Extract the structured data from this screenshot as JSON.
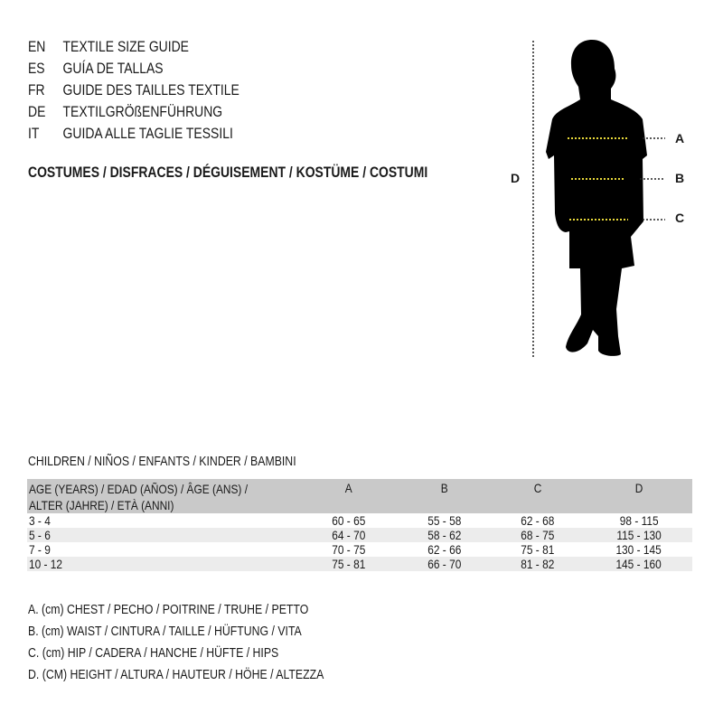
{
  "languages": [
    {
      "code": "EN",
      "title": "TEXTILE SIZE GUIDE"
    },
    {
      "code": "ES",
      "title": "GUÍA DE TALLAS"
    },
    {
      "code": "FR",
      "title": "GUIDE DES TAILLES TEXTILE"
    },
    {
      "code": "DE",
      "title": "TEXTILGRÖßENFÜHRUNG"
    },
    {
      "code": "IT",
      "title": "GUIDA ALLE TAGLIE TESSILI"
    }
  ],
  "category": "COSTUMES / DISFRACES / DÉGUISEMENT / KOSTÜME / COSTUMI",
  "figure": {
    "labels": {
      "a": "A",
      "b": "B",
      "c": "C",
      "d": "D"
    },
    "measure_line_color": "#e8d93a"
  },
  "table": {
    "section_title": "CHILDREN / NIÑOS / ENFANTS / KINDER / BAMBINI",
    "headers": {
      "age_line1": "AGE (YEARS) / EDAD (AÑOS) / ÂGE (ANS) /",
      "age_line2": "ALTER (JAHRE) / ETÀ (ANNI)",
      "a": "A",
      "b": "B",
      "c": "C",
      "d": "D"
    },
    "rows": [
      {
        "age": "3 - 4",
        "a": "60 - 65",
        "b": "55 - 58",
        "c": "62 - 68",
        "d": "98 - 115"
      },
      {
        "age": "5 - 6",
        "a": "64 - 70",
        "b": "58 - 62",
        "c": "68 - 75",
        "d": "115 - 130"
      },
      {
        "age": "7 - 9",
        "a": "70 - 75",
        "b": "62 - 66",
        "c": "75 - 81",
        "d": "130 - 145"
      },
      {
        "age": "10 - 12",
        "a": "75 - 81",
        "b": "66 - 70",
        "c": "81 - 82",
        "d": "145 - 160"
      }
    ]
  },
  "legend": [
    "A. (cm) CHEST / PECHO / POITRINE / TRUHE / PETTO",
    "B. (cm) WAIST / CINTURA / TAILLE / HÜFTUNG / VITA",
    "C. (cm) HIP / CADERA / HANCHE / HÜFTE / HIPS",
    "D. (CM) HEIGHT / ALTURA / HAUTEUR / HÖHE / ALTEZZA"
  ]
}
